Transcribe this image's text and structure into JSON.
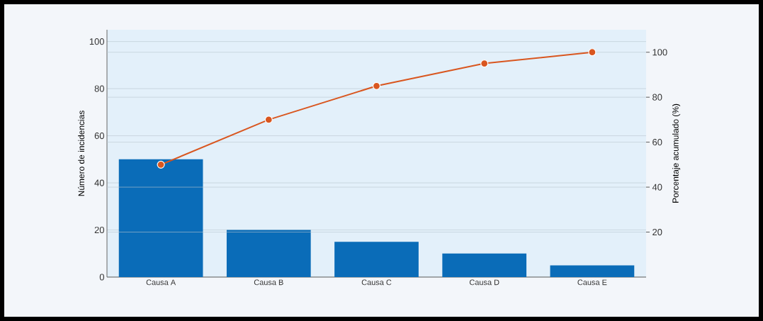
{
  "chart_data": {
    "type": "bar",
    "categories": [
      "Causa A",
      "Causa B",
      "Causa C",
      "Causa D",
      "Causa E"
    ],
    "series": [
      {
        "color": "#0a6cb8",
        "values": [
          50,
          20,
          15,
          10,
          5
        ]
      },
      {
        "type": "line",
        "axis": "y2",
        "color": "#d9561f",
        "marker": "circle",
        "values": [
          50,
          70,
          85,
          95,
          100
        ]
      }
    ],
    "ylabel": "Número de incidencias",
    "y2label": "Porcentaje acumulado (%)",
    "ylim": [
      0,
      105
    ],
    "yticks": [
      0,
      20,
      40,
      60,
      80,
      100
    ],
    "y2lim": [
      0,
      110
    ],
    "y2ticks": [
      20,
      40,
      60,
      80,
      100
    ],
    "grid": true
  }
}
